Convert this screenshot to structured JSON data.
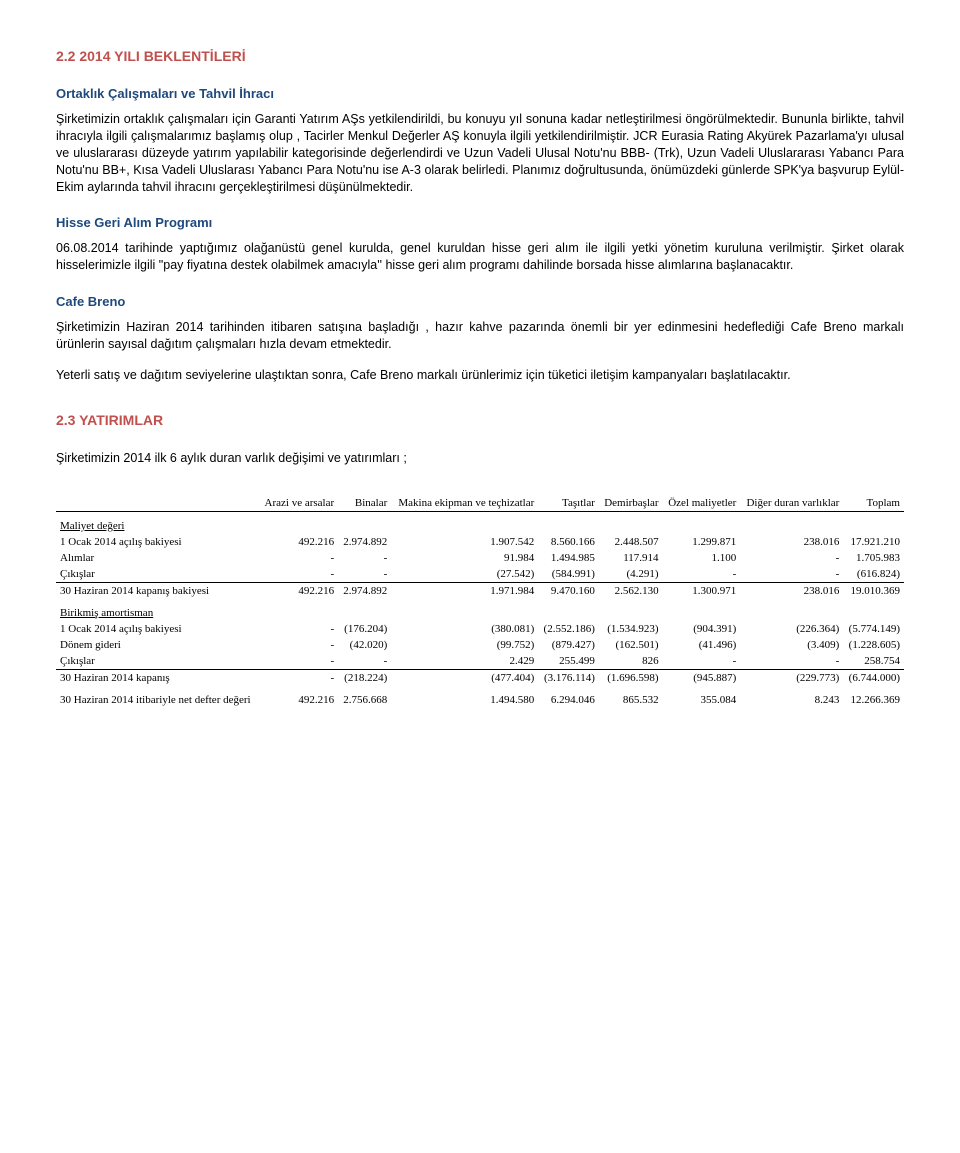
{
  "section1": {
    "title": "2.2 2014 YILI BEKLENTİLERİ",
    "sub1_title": "Ortaklık Çalışmaları ve Tahvil İhracı",
    "p1": "Şirketimizin ortaklık çalışmaları için Garanti Yatırım AŞs yetkilendirildi, bu konuyu yıl sonuna kadar netleştirilmesi öngörülmektedir. Bununla birlikte, tahvil ihracıyla ilgili çalışmalarımız başlamış olup , Tacirler Menkul Değerler AŞ konuyla ilgili yetkilendirilmiştir. JCR Eurasia Rating Akyürek Pazarlama'yı ulusal ve uluslararası düzeyde yatırım yapılabilir kategorisinde değerlendirdi ve Uzun Vadeli Ulusal Notu'nu BBB- (Trk), Uzun Vadeli Uluslararası Yabancı Para Notu'nu BB+, Kısa Vadeli Uluslarası Yabancı Para Notu'nu ise A-3 olarak belirledi. Planımız doğrultusunda, önümüzdeki günlerde SPK'ya başvurup Eylül-Ekim aylarında tahvil ihracını gerçekleştirilmesi düşünülmektedir.",
    "sub2_title": "Hisse Geri Alım Programı",
    "p2": "06.08.2014 tarihinde yaptığımız olağanüstü genel kurulda, genel kuruldan hisse geri alım ile ilgili yetki yönetim kuruluna verilmiştir. Şirket olarak hisselerimizle ilgili \"pay fiyatına destek olabilmek amacıyla'' hisse geri alım programı dahilinde borsada hisse alımlarına başlanacaktır.",
    "sub3_title": "Cafe Breno",
    "p3": "Şirketimizin Haziran 2014 tarihinden itibaren satışına başladığı , hazır kahve pazarında önemli bir yer edinmesini hedeflediği Cafe Breno markalı ürünlerin sayısal dağıtım çalışmaları hızla devam etmektedir.",
    "p4": "Yeterli satış ve dağıtım seviyelerine ulaştıktan sonra, Cafe Breno markalı ürünlerimiz için tüketici iletişim kampanyaları başlatılacaktır."
  },
  "section2": {
    "title": "2.3 YATIRIMLAR",
    "intro": "Şirketimizin 2014 ilk 6 aylık duran varlık değişimi ve yatırımları ;"
  },
  "table": {
    "headers": [
      "Arazi ve arsalar",
      "Binalar",
      "Makina ekipman ve teçhizatlar",
      "Taşıtlar",
      "Demirbaşlar",
      "Özel maliyetler",
      "Diğer duran varlıklar",
      "Toplam"
    ],
    "group1": {
      "label": "Maliyet değeri",
      "rows": [
        {
          "label": "1 Ocak 2014 açılış bakiyesi",
          "c": [
            "492.216",
            "2.974.892",
            "1.907.542",
            "8.560.166",
            "2.448.507",
            "1.299.871",
            "238.016",
            "17.921.210"
          ]
        },
        {
          "label": "Alımlar",
          "c": [
            "-",
            "-",
            "91.984",
            "1.494.985",
            "117.914",
            "1.100",
            "-",
            "1.705.983"
          ]
        },
        {
          "label": "Çıkışlar",
          "c": [
            "-",
            "-",
            "(27.542)",
            "(584.991)",
            "(4.291)",
            "-",
            "-",
            "(616.824)"
          ]
        }
      ],
      "total": {
        "label": "30 Haziran 2014 kapanış bakiyesi",
        "c": [
          "492.216",
          "2.974.892",
          "1.971.984",
          "9.470.160",
          "2.562.130",
          "1.300.971",
          "238.016",
          "19.010.369"
        ]
      }
    },
    "group2": {
      "label": "Birikmiş amortisman",
      "rows": [
        {
          "label": "1 Ocak 2014 açılış bakiyesi",
          "c": [
            "-",
            "(176.204)",
            "(380.081)",
            "(2.552.186)",
            "(1.534.923)",
            "(904.391)",
            "(226.364)",
            "(5.774.149)"
          ]
        },
        {
          "label": "Dönem gideri",
          "c": [
            "-",
            "(42.020)",
            "(99.752)",
            "(879.427)",
            "(162.501)",
            "(41.496)",
            "(3.409)",
            "(1.228.605)"
          ]
        },
        {
          "label": "Çıkışlar",
          "c": [
            "-",
            "-",
            "2.429",
            "255.499",
            "826",
            "-",
            "-",
            "258.754"
          ]
        }
      ],
      "total": {
        "label": "30 Haziran 2014 kapanış",
        "c": [
          "-",
          "(218.224)",
          "(477.404)",
          "(3.176.114)",
          "(1.696.598)",
          "(945.887)",
          "(229.773)",
          "(6.744.000)"
        ]
      }
    },
    "net": {
      "label": "30 Haziran 2014 itibariyle net defter değeri",
      "c": [
        "492.216",
        "2.756.668",
        "1.494.580",
        "6.294.046",
        "865.532",
        "355.084",
        "8.243",
        "12.266.369"
      ]
    }
  }
}
